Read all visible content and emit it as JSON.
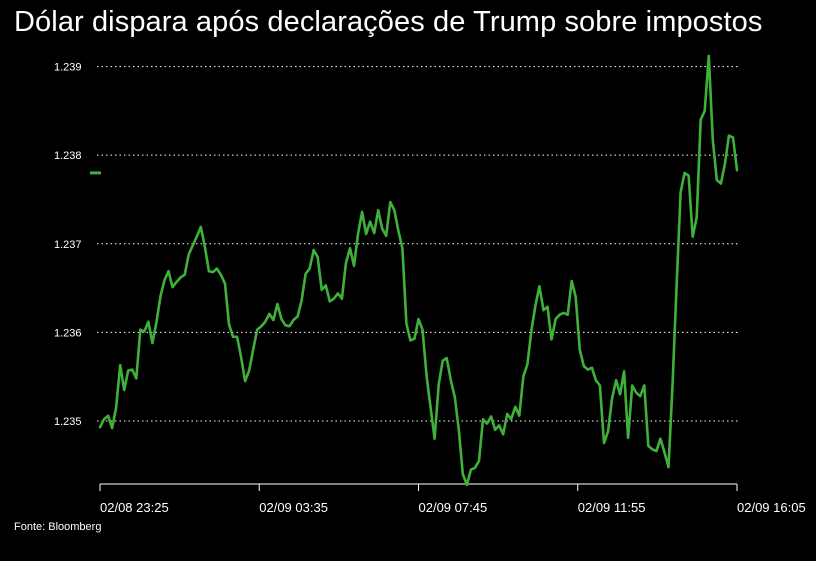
{
  "title": "Dólar dispara após declarações de Trump sobre impostos",
  "source": "Fonte: Bloomberg",
  "colors": {
    "background": "#000000",
    "line": "#3fb13a",
    "grid": "#ffffff",
    "text": "#ffffff"
  },
  "chart_data": {
    "type": "line",
    "title": "Dólar dispara após declarações de Trump sobre impostos",
    "xlabel": "",
    "ylabel": "",
    "grid": "horizontal dotted",
    "legend": "none",
    "ylim": [
      1.2343,
      1.2393
    ],
    "yticks": [
      1.235,
      1.236,
      1.237,
      1.238,
      1.239
    ],
    "ytick_labels": [
      "1.235",
      "1.236",
      "1.237",
      "1.238",
      "1.239"
    ],
    "xtick_labels": [
      "02/08 23:25",
      "02/09 03:35",
      "02/09 07:45",
      "02/09 11:55",
      "02/09 16:05"
    ],
    "x_ticks": [
      "02/08 23:25",
      "02/09 03:35",
      "02/09 07:45",
      "02/09 11:55",
      "02/09 16:05"
    ],
    "series": [
      {
        "values": [
          1.23493,
          1.23502,
          1.23506,
          1.23492,
          1.23515,
          1.23563,
          1.23535,
          1.23557,
          1.23558,
          1.23548,
          1.23603,
          1.23601,
          1.23612,
          1.23588,
          1.23611,
          1.23641,
          1.23659,
          1.23669,
          1.23651,
          1.23657,
          1.23662,
          1.23665,
          1.23688,
          1.23698,
          1.23708,
          1.23719,
          1.23697,
          1.23669,
          1.23668,
          1.23672,
          1.23665,
          1.23655,
          1.23609,
          1.23595,
          1.23595,
          1.23572,
          1.23545,
          1.23557,
          1.23581,
          1.23603,
          1.23607,
          1.23612,
          1.23621,
          1.23614,
          1.23632,
          1.23615,
          1.23608,
          1.23607,
          1.23614,
          1.23618,
          1.23636,
          1.23666,
          1.23672,
          1.23693,
          1.23685,
          1.23648,
          1.23653,
          1.23635,
          1.23638,
          1.23644,
          1.23638,
          1.23678,
          1.23695,
          1.23675,
          1.23711,
          1.23736,
          1.23711,
          1.23725,
          1.23712,
          1.23738,
          1.23717,
          1.23709,
          1.23747,
          1.23738,
          1.23715,
          1.23695,
          1.2361,
          1.23591,
          1.23593,
          1.23615,
          1.23603,
          1.23551,
          1.23515,
          1.2348,
          1.23541,
          1.23568,
          1.23571,
          1.23546,
          1.23527,
          1.2349,
          1.2344,
          1.23428,
          1.23445,
          1.23447,
          1.23455,
          1.23502,
          1.23497,
          1.23505,
          1.2349,
          1.23495,
          1.23485,
          1.23508,
          1.23502,
          1.23516,
          1.23506,
          1.2355,
          1.23564,
          1.23602,
          1.2363,
          1.23652,
          1.23625,
          1.23629,
          1.23592,
          1.23615,
          1.2362,
          1.23622,
          1.2362,
          1.23658,
          1.2364,
          1.2358,
          1.23562,
          1.23558,
          1.2356,
          1.23546,
          1.2354,
          1.23475,
          1.23488,
          1.23525,
          1.23546,
          1.2353,
          1.23556,
          1.23481,
          1.2354,
          1.23532,
          1.23528,
          1.2354,
          1.23472,
          1.23468,
          1.23466,
          1.2348,
          1.23465,
          1.23448,
          1.2354,
          1.2365,
          1.23758,
          1.2378,
          1.23777,
          1.23708,
          1.2373,
          1.2384,
          1.2385,
          1.23912,
          1.23817,
          1.23772,
          1.23768,
          1.2379,
          1.23822,
          1.2382,
          1.23783
        ]
      }
    ],
    "last_value_marker": 1.2378
  }
}
